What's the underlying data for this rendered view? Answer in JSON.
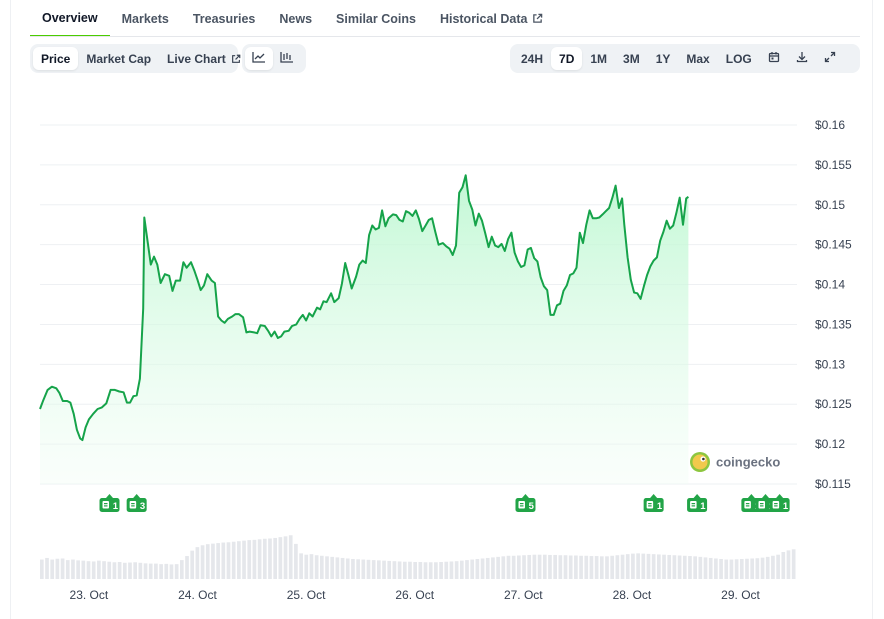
{
  "tabs": [
    {
      "label": "Overview",
      "active": true
    },
    {
      "label": "Markets"
    },
    {
      "label": "Treasuries"
    },
    {
      "label": "News"
    },
    {
      "label": "Similar Coins"
    },
    {
      "label": "Historical Data",
      "external": true
    }
  ],
  "toolbar": {
    "metric_buttons": [
      {
        "label": "Price",
        "active": true
      },
      {
        "label": "Market Cap"
      },
      {
        "label": "Live Chart",
        "external": true
      }
    ],
    "chart_type_icons": [
      "line-chart-icon",
      "candlestick-chart-icon"
    ],
    "range_buttons": [
      {
        "label": "24H"
      },
      {
        "label": "7D",
        "active": true
      },
      {
        "label": "1M"
      },
      {
        "label": "3M"
      },
      {
        "label": "1Y"
      },
      {
        "label": "Max"
      },
      {
        "label": "LOG"
      }
    ],
    "action_icons": [
      "calendar-icon",
      "download-icon",
      "fullscreen-icon"
    ]
  },
  "watermark": "coingecko",
  "colors": {
    "line": "#16a34a",
    "fill_top": "#bbf7d0",
    "accent": "#4bcc00",
    "event": "#22a447",
    "volume": "#e5e7eb"
  },
  "chart_data": {
    "type": "area",
    "y_tick_labels": [
      "$0.16",
      "$0.155",
      "$0.15",
      "$0.145",
      "$0.14",
      "$0.135",
      "$0.13",
      "$0.125",
      "$0.12",
      "$0.115"
    ],
    "ylim": [
      0.115,
      0.16
    ],
    "x_tick_labels": [
      "23. Oct",
      "24. Oct",
      "25. Oct",
      "26. Oct",
      "27. Oct",
      "28. Oct",
      "29. Oct"
    ],
    "x_tick_days": [
      23,
      24,
      25,
      26,
      27,
      28,
      29
    ],
    "xlim": [
      22.55,
      29.52
    ],
    "grid": true,
    "series": [
      {
        "points": [
          [
            22.55,
            0.1244
          ],
          [
            22.58,
            0.1255
          ],
          [
            22.62,
            0.1268
          ],
          [
            22.66,
            0.1272
          ],
          [
            22.7,
            0.127
          ],
          [
            22.73,
            0.1264
          ],
          [
            22.76,
            0.1254
          ],
          [
            22.8,
            0.1254
          ],
          [
            22.83,
            0.1252
          ],
          [
            22.86,
            0.1238
          ],
          [
            22.89,
            0.1218
          ],
          [
            22.92,
            0.1207
          ],
          [
            22.94,
            0.1205
          ],
          [
            22.97,
            0.1221
          ],
          [
            23.0,
            0.1231
          ],
          [
            23.04,
            0.1238
          ],
          [
            23.08,
            0.1244
          ],
          [
            23.12,
            0.1246
          ],
          [
            23.16,
            0.1251
          ],
          [
            23.2,
            0.1268
          ],
          [
            23.24,
            0.1268
          ],
          [
            23.28,
            0.1266
          ],
          [
            23.32,
            0.1265
          ],
          [
            23.35,
            0.1252
          ],
          [
            23.38,
            0.1252
          ],
          [
            23.41,
            0.126
          ],
          [
            23.44,
            0.1261
          ],
          [
            23.47,
            0.1282
          ],
          [
            23.5,
            0.137
          ],
          [
            23.51,
            0.1484
          ],
          [
            23.53,
            0.1465
          ],
          [
            23.57,
            0.1425
          ],
          [
            23.6,
            0.1435
          ],
          [
            23.63,
            0.1425
          ],
          [
            23.66,
            0.1402
          ],
          [
            23.7,
            0.1413
          ],
          [
            23.74,
            0.1411
          ],
          [
            23.77,
            0.1392
          ],
          [
            23.8,
            0.1405
          ],
          [
            23.84,
            0.1405
          ],
          [
            23.87,
            0.1428
          ],
          [
            23.9,
            0.1421
          ],
          [
            23.94,
            0.1428
          ],
          [
            23.97,
            0.1418
          ],
          [
            24.0,
            0.1406
          ],
          [
            24.03,
            0.1393
          ],
          [
            24.06,
            0.1399
          ],
          [
            24.09,
            0.1413
          ],
          [
            24.13,
            0.1405
          ],
          [
            24.16,
            0.1402
          ],
          [
            24.19,
            0.136
          ],
          [
            24.22,
            0.1355
          ],
          [
            24.25,
            0.1352
          ],
          [
            24.28,
            0.1357
          ],
          [
            24.32,
            0.136
          ],
          [
            24.35,
            0.1363
          ],
          [
            24.38,
            0.1363
          ],
          [
            24.42,
            0.1359
          ],
          [
            24.45,
            0.134
          ],
          [
            24.48,
            0.1341
          ],
          [
            24.52,
            0.134
          ],
          [
            24.55,
            0.1339
          ],
          [
            24.58,
            0.1349
          ],
          [
            24.62,
            0.1348
          ],
          [
            24.65,
            0.1342
          ],
          [
            24.68,
            0.1335
          ],
          [
            24.71,
            0.1341
          ],
          [
            24.74,
            0.1333
          ],
          [
            24.77,
            0.1335
          ],
          [
            24.8,
            0.1341
          ],
          [
            24.84,
            0.1342
          ],
          [
            24.87,
            0.1348
          ],
          [
            24.91,
            0.135
          ],
          [
            24.94,
            0.1357
          ],
          [
            24.97,
            0.1362
          ],
          [
            25.0,
            0.1355
          ],
          [
            25.03,
            0.1364
          ],
          [
            25.06,
            0.136
          ],
          [
            25.1,
            0.1371
          ],
          [
            25.13,
            0.1369
          ],
          [
            25.16,
            0.1379
          ],
          [
            25.19,
            0.1378
          ],
          [
            25.23,
            0.1389
          ],
          [
            25.26,
            0.1378
          ],
          [
            25.3,
            0.1383
          ],
          [
            25.33,
            0.1401
          ],
          [
            25.36,
            0.1427
          ],
          [
            25.39,
            0.1412
          ],
          [
            25.42,
            0.1395
          ],
          [
            25.46,
            0.141
          ],
          [
            25.49,
            0.1425
          ],
          [
            25.52,
            0.143
          ],
          [
            25.55,
            0.1427
          ],
          [
            25.58,
            0.1462
          ],
          [
            25.61,
            0.1474
          ],
          [
            25.64,
            0.1469
          ],
          [
            25.67,
            0.1471
          ],
          [
            25.7,
            0.1493
          ],
          [
            25.73,
            0.1473
          ],
          [
            25.76,
            0.1483
          ],
          [
            25.8,
            0.1488
          ],
          [
            25.83,
            0.1487
          ],
          [
            25.86,
            0.1481
          ],
          [
            25.89,
            0.1479
          ],
          [
            25.92,
            0.1492
          ],
          [
            25.95,
            0.149
          ],
          [
            25.98,
            0.1486
          ],
          [
            26.01,
            0.1493
          ],
          [
            26.04,
            0.1482
          ],
          [
            26.07,
            0.1467
          ],
          [
            26.1,
            0.1474
          ],
          [
            26.13,
            0.1481
          ],
          [
            26.16,
            0.1483
          ],
          [
            26.19,
            0.1466
          ],
          [
            26.22,
            0.145
          ],
          [
            26.26,
            0.1452
          ],
          [
            26.29,
            0.1448
          ],
          [
            26.32,
            0.1445
          ],
          [
            26.35,
            0.1437
          ],
          [
            26.38,
            0.1449
          ],
          [
            26.41,
            0.1515
          ],
          [
            26.44,
            0.1522
          ],
          [
            26.47,
            0.1537
          ],
          [
            26.5,
            0.1505
          ],
          [
            26.53,
            0.1494
          ],
          [
            26.56,
            0.1474
          ],
          [
            26.59,
            0.1489
          ],
          [
            26.62,
            0.148
          ],
          [
            26.65,
            0.1464
          ],
          [
            26.68,
            0.1447
          ],
          [
            26.71,
            0.146
          ],
          [
            26.74,
            0.1449
          ],
          [
            26.77,
            0.1447
          ],
          [
            26.8,
            0.1451
          ],
          [
            26.83,
            0.1442
          ],
          [
            26.86,
            0.1457
          ],
          [
            26.89,
            0.1465
          ],
          [
            26.92,
            0.144
          ],
          [
            26.95,
            0.1429
          ],
          [
            26.98,
            0.1422
          ],
          [
            27.01,
            0.1424
          ],
          [
            27.04,
            0.1444
          ],
          [
            27.07,
            0.1446
          ],
          [
            27.1,
            0.1433
          ],
          [
            27.13,
            0.1429
          ],
          [
            27.16,
            0.1409
          ],
          [
            27.19,
            0.1398
          ],
          [
            27.22,
            0.1393
          ],
          [
            27.25,
            0.1362
          ],
          [
            27.28,
            0.1362
          ],
          [
            27.31,
            0.1374
          ],
          [
            27.34,
            0.1376
          ],
          [
            27.37,
            0.1392
          ],
          [
            27.4,
            0.1399
          ],
          [
            27.43,
            0.1412
          ],
          [
            27.46,
            0.1414
          ],
          [
            27.49,
            0.1421
          ],
          [
            27.52,
            0.1465
          ],
          [
            27.55,
            0.1452
          ],
          [
            27.58,
            0.1475
          ],
          [
            27.61,
            0.1493
          ],
          [
            27.64,
            0.1483
          ],
          [
            27.67,
            0.1483
          ],
          [
            27.7,
            0.1484
          ],
          [
            27.73,
            0.1488
          ],
          [
            27.76,
            0.1492
          ],
          [
            27.79,
            0.1496
          ],
          [
            27.82,
            0.1509
          ],
          [
            27.85,
            0.1524
          ],
          [
            27.88,
            0.1496
          ],
          [
            27.91,
            0.1508
          ],
          [
            27.93,
            0.1475
          ],
          [
            27.96,
            0.1434
          ],
          [
            27.99,
            0.1406
          ],
          [
            28.02,
            0.139
          ],
          [
            28.05,
            0.1389
          ],
          [
            28.08,
            0.1382
          ],
          [
            28.11,
            0.1398
          ],
          [
            28.14,
            0.1412
          ],
          [
            28.17,
            0.1423
          ],
          [
            28.2,
            0.143
          ],
          [
            28.23,
            0.1434
          ],
          [
            28.26,
            0.1455
          ],
          [
            28.29,
            0.1466
          ],
          [
            28.32,
            0.148
          ],
          [
            28.35,
            0.147
          ],
          [
            28.38,
            0.1474
          ],
          [
            28.41,
            0.149
          ],
          [
            28.44,
            0.1509
          ],
          [
            28.47,
            0.1475
          ],
          [
            28.5,
            0.1508
          ],
          [
            28.52,
            0.151
          ]
        ]
      }
    ],
    "events": [
      {
        "x": 23.19,
        "count": "1"
      },
      {
        "x": 23.44,
        "count": "3"
      },
      {
        "x": 27.02,
        "count": "5"
      },
      {
        "x": 28.2,
        "count": "1"
      },
      {
        "x": 28.6,
        "count": "1"
      },
      {
        "x": 29.1,
        "count": "1"
      },
      {
        "x": 29.23,
        "count": "1"
      },
      {
        "x": 29.36,
        "count": "1"
      }
    ],
    "volume": {
      "x_start": 22.55,
      "x_end": 29.52,
      "values": [
        0.72,
        0.78,
        0.72,
        0.75,
        0.76,
        0.7,
        0.72,
        0.69,
        0.68,
        0.66,
        0.65,
        0.68,
        0.66,
        0.64,
        0.62,
        0.63,
        0.6,
        0.61,
        0.62,
        0.6,
        0.58,
        0.57,
        0.57,
        0.55,
        0.56,
        0.54,
        0.55,
        0.7,
        0.85,
        1.05,
        1.18,
        1.25,
        1.29,
        1.31,
        1.33,
        1.35,
        1.36,
        1.38,
        1.4,
        1.42,
        1.44,
        1.45,
        1.47,
        1.49,
        1.5,
        1.52,
        1.55,
        1.58,
        1.62,
        1.3,
        0.95,
        0.9,
        0.92,
        0.88,
        0.86,
        0.84,
        0.82,
        0.8,
        0.78,
        0.76,
        0.74,
        0.73,
        0.72,
        0.71,
        0.7,
        0.69,
        0.68,
        0.67,
        0.66,
        0.65,
        0.64,
        0.64,
        0.63,
        0.63,
        0.62,
        0.62,
        0.62,
        0.63,
        0.64,
        0.65,
        0.66,
        0.68,
        0.7,
        0.72,
        0.74,
        0.76,
        0.78,
        0.8,
        0.82,
        0.84,
        0.86,
        0.86,
        0.87,
        0.88,
        0.89,
        0.9,
        0.9,
        0.9,
        0.89,
        0.89,
        0.88,
        0.88,
        0.87,
        0.87,
        0.86,
        0.86,
        0.85,
        0.85,
        0.84,
        0.84,
        0.86,
        0.88,
        0.9,
        0.92,
        0.94,
        0.95,
        0.94,
        0.93,
        0.92,
        0.91,
        0.9,
        0.89,
        0.88,
        0.87,
        0.86,
        0.85,
        0.84,
        0.82,
        0.8,
        0.78,
        0.76,
        0.74,
        0.72,
        0.72,
        0.73,
        0.74,
        0.75,
        0.76,
        0.77,
        0.79,
        0.82,
        0.86,
        0.9,
        1.0,
        1.06,
        1.1
      ]
    }
  }
}
